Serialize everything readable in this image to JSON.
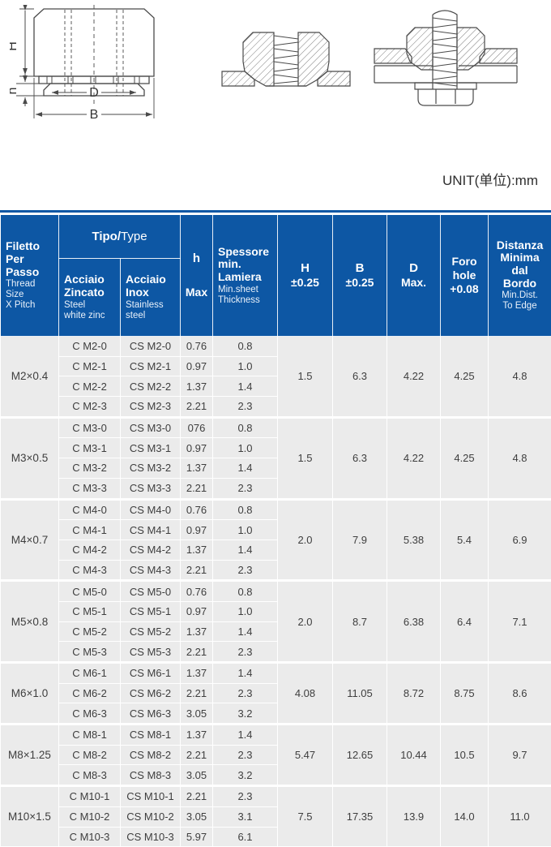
{
  "unit_label": "UNIT(单位):mm",
  "diagram": {
    "labels": {
      "height": "H",
      "flange_height": "h",
      "diameter": "D",
      "body_width": "B"
    }
  },
  "table": {
    "header": {
      "thread": {
        "main": "Filetto\nPer\nPasso",
        "sub": "Thread\nSize\nX Pitch"
      },
      "tipo": {
        "bold": "Tipo/",
        "regular": "Type"
      },
      "zincato": {
        "main": "Acciaio\nZincato",
        "sub": "Steel\nwhite zinc"
      },
      "inox": {
        "main": "Acciaio\nInox",
        "sub": "Stainless\nsteel"
      },
      "h_max": {
        "line1": "h",
        "line2": "Max"
      },
      "spessore": {
        "main": "Spessore\nmin.\nLamiera",
        "sub": "Min.sheet\nThickness"
      },
      "H": {
        "line1": "H",
        "line2": "±0.25"
      },
      "B": {
        "line1": "B",
        "line2": "±0.25"
      },
      "D": {
        "line1": "D",
        "line2": "Max."
      },
      "foro": {
        "line1": "Foro",
        "line2": "hole",
        "line3": "+0.08"
      },
      "distanza": {
        "main": "Distanza\nMinima\ndal\nBordo",
        "sub": "Min.Dist.\nTo Edge"
      }
    },
    "groups": [
      {
        "size": "M2×0.4",
        "rows": [
          [
            "C M2-0",
            "CS M2-0",
            "0.76",
            "0.8"
          ],
          [
            "C M2-1",
            "CS M2-1",
            "0.97",
            "1.0"
          ],
          [
            "C M2-2",
            "CS M2-2",
            "1.37",
            "1.4"
          ],
          [
            "C M2-3",
            "CS M2-3",
            "2.21",
            "2.3"
          ]
        ],
        "H": "1.5",
        "B": "6.3",
        "D": "4.22",
        "foro": "4.25",
        "edge": "4.8"
      },
      {
        "size": "M3×0.5",
        "rows": [
          [
            "C M3-0",
            "CS M3-0",
            "076",
            "0.8"
          ],
          [
            "C M3-1",
            "CS M3-1",
            "0.97",
            "1.0"
          ],
          [
            "C M3-2",
            "CS M3-2",
            "1.37",
            "1.4"
          ],
          [
            "C M3-3",
            "CS M3-3",
            "2.21",
            "2.3"
          ]
        ],
        "H": "1.5",
        "B": "6.3",
        "D": "4.22",
        "foro": "4.25",
        "edge": "4.8"
      },
      {
        "size": "M4×0.7",
        "rows": [
          [
            "C M4-0",
            "CS M4-0",
            "0.76",
            "0.8"
          ],
          [
            "C M4-1",
            "CS M4-1",
            "0.97",
            "1.0"
          ],
          [
            "C M4-2",
            "CS M4-2",
            "1.37",
            "1.4"
          ],
          [
            "C M4-3",
            "CS M4-3",
            "2.21",
            "2.3"
          ]
        ],
        "H": "2.0",
        "B": "7.9",
        "D": "5.38",
        "foro": "5.4",
        "edge": "6.9"
      },
      {
        "size": "M5×0.8",
        "rows": [
          [
            "C M5-0",
            "CS M5-0",
            "0.76",
            "0.8"
          ],
          [
            "C M5-1",
            "CS M5-1",
            "0.97",
            "1.0"
          ],
          [
            "C M5-2",
            "CS M5-2",
            "1.37",
            "1.4"
          ],
          [
            "C M5-3",
            "CS M5-3",
            "2.21",
            "2.3"
          ]
        ],
        "H": "2.0",
        "B": "8.7",
        "D": "6.38",
        "foro": "6.4",
        "edge": "7.1"
      },
      {
        "size": "M6×1.0",
        "rows": [
          [
            "C M6-1",
            "CS M6-1",
            "1.37",
            "1.4"
          ],
          [
            "C M6-2",
            "CS M6-2",
            "2.21",
            "2.3"
          ],
          [
            "C M6-3",
            "CS M6-3",
            "3.05",
            "3.2"
          ]
        ],
        "H": "4.08",
        "B": "11.05",
        "D": "8.72",
        "foro": "8.75",
        "edge": "8.6"
      },
      {
        "size": "M8×1.25",
        "rows": [
          [
            "C M8-1",
            "CS M8-1",
            "1.37",
            "1.4"
          ],
          [
            "C M8-2",
            "CS M8-2",
            "2.21",
            "2.3"
          ],
          [
            "C M8-3",
            "CS M8-3",
            "3.05",
            "3.2"
          ]
        ],
        "H": "5.47",
        "B": "12.65",
        "D": "10.44",
        "foro": "10.5",
        "edge": "9.7"
      },
      {
        "size": "M10×1.5",
        "rows": [
          [
            "C M10-1",
            "CS M10-1",
            "2.21",
            "2.3"
          ],
          [
            "C M10-2",
            "CS M10-2",
            "3.05",
            "3.1"
          ],
          [
            "C M10-3",
            "CS M10-3",
            "5.97",
            "6.1"
          ]
        ],
        "H": "7.5",
        "B": "17.35",
        "D": "13.9",
        "foro": "14.0",
        "edge": "11.0"
      }
    ]
  },
  "colors": {
    "header_blue": "#0d57a4",
    "body_gray": "#ebebeb",
    "grid_white": "#ffffff",
    "body_text": "#3e3e3e",
    "line_dark": "#4a4a4a"
  }
}
